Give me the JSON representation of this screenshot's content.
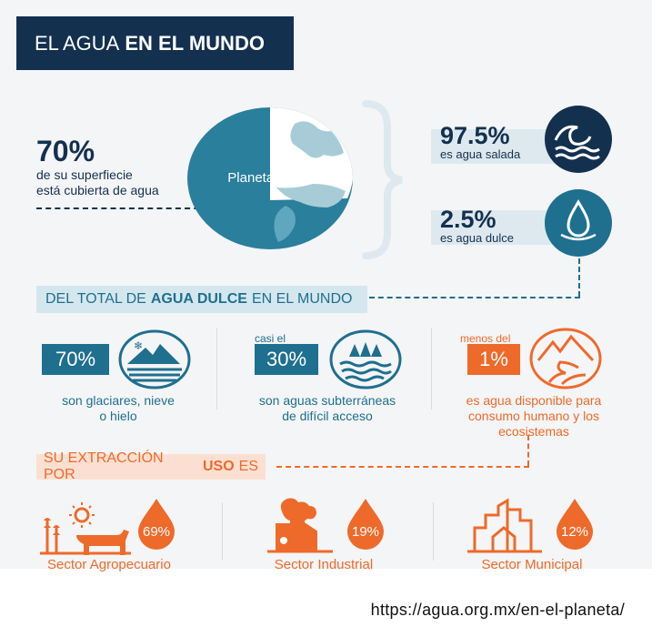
{
  "header": {
    "title_light": "EL AGUA",
    "title_bold": "EN EL MUNDO"
  },
  "surface": {
    "value": "70%",
    "caption_line1": "de su superfiecie",
    "caption_line2": "está cubierta de agua"
  },
  "globe": {
    "label": "Planeta Tierra"
  },
  "salt": {
    "value": "97.5%",
    "caption": "es agua salada"
  },
  "fresh": {
    "value": "2.5%",
    "caption": "es agua dulce"
  },
  "freshwater_section": {
    "prefix": "DEL TOTAL DE",
    "bold": "AGUA DULCE",
    "suffix": "EN EL MUNDO"
  },
  "freshwater_items": [
    {
      "prefix": "",
      "value": "70%",
      "caption_line1": "son glaciares, nieve",
      "caption_line2": "o hielo",
      "caption_line3": ""
    },
    {
      "prefix": "casi el",
      "value": "30%",
      "caption_line1": "son aguas subterráneas",
      "caption_line2": "de difícil acceso",
      "caption_line3": ""
    },
    {
      "prefix": "menos del",
      "value": "1%",
      "caption_line1": "es agua disponible para",
      "caption_line2": "consumo humano y los",
      "caption_line3": "ecosistemas"
    }
  ],
  "extraction_section": {
    "prefix": "SU EXTRACCIÓN POR",
    "bold": "USO",
    "suffix": "ES"
  },
  "sectors": [
    {
      "label": "Sector Agropecuario",
      "value": "69%"
    },
    {
      "label": "Sector Industrial",
      "value": "19%"
    },
    {
      "label": "Sector Municipal",
      "value": "12%"
    }
  ],
  "footer": {
    "url": "https://agua.org.mx/en-el-planeta/"
  },
  "colors": {
    "navy": "#14304f",
    "teal": "#1f6f8f",
    "orange": "#ee6a2a",
    "globe": "#2a7f9c"
  }
}
